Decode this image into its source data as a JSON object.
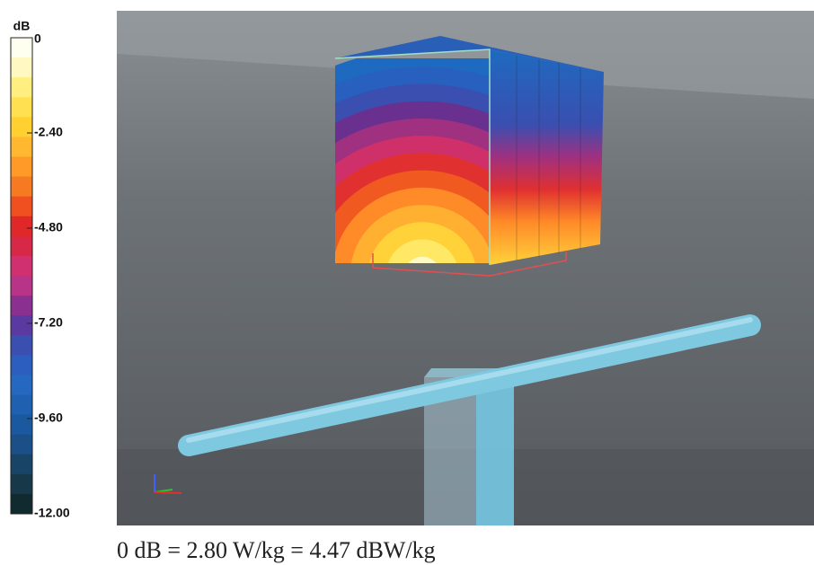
{
  "colorbar": {
    "unit": "dB",
    "ticks": [
      "0",
      "-2.40",
      "-4.80",
      "-7.20",
      "-9.60",
      "-12.00"
    ]
  },
  "caption": "0 dB = 2.80 W/kg = 4.47 dBW/kg"
}
